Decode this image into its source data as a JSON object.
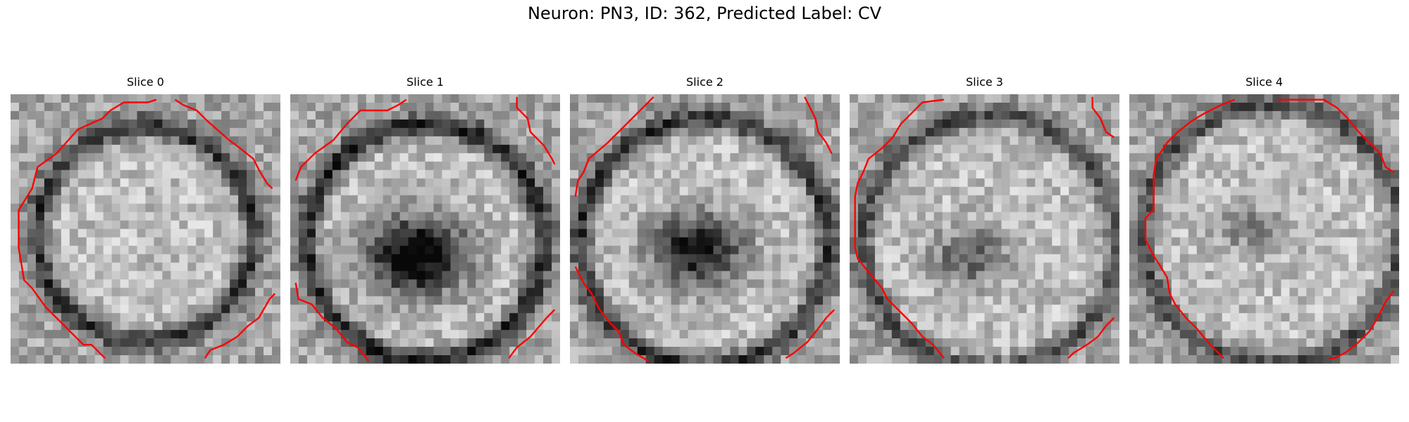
{
  "figure": {
    "title": "Neuron: PN3, ID: 362, Predicted Label: CV",
    "contour_color": "#ff0000"
  },
  "slices": [
    {
      "label": "Slice 0",
      "contours": [
        [
          [
            0.54,
            0.02
          ],
          [
            0.51,
            0.03
          ],
          [
            0.42,
            0.03
          ],
          [
            0.37,
            0.06
          ],
          [
            0.34,
            0.09
          ],
          [
            0.25,
            0.13
          ],
          [
            0.17,
            0.22
          ],
          [
            0.1,
            0.27
          ],
          [
            0.08,
            0.35
          ],
          [
            0.03,
            0.43
          ],
          [
            0.03,
            0.57
          ],
          [
            0.05,
            0.69
          ],
          [
            0.08,
            0.72
          ],
          [
            0.13,
            0.79
          ],
          [
            0.2,
            0.86
          ],
          [
            0.27,
            0.93
          ],
          [
            0.3,
            0.93
          ],
          [
            0.35,
            0.98
          ]
        ],
        [
          [
            0.61,
            0.02
          ],
          [
            0.64,
            0.04
          ],
          [
            0.69,
            0.06
          ],
          [
            0.73,
            0.1
          ],
          [
            0.81,
            0.17
          ],
          [
            0.85,
            0.2
          ],
          [
            0.9,
            0.24
          ],
          [
            0.92,
            0.28
          ],
          [
            0.95,
            0.33
          ],
          [
            0.97,
            0.35
          ]
        ],
        [
          [
            0.98,
            0.74
          ],
          [
            0.96,
            0.76
          ],
          [
            0.92,
            0.83
          ],
          [
            0.88,
            0.86
          ],
          [
            0.84,
            0.9
          ],
          [
            0.79,
            0.93
          ],
          [
            0.74,
            0.95
          ],
          [
            0.72,
            0.98
          ]
        ]
      ]
    },
    {
      "label": "Slice 1",
      "contours": [
        [
          [
            0.43,
            0.02
          ],
          [
            0.4,
            0.04
          ],
          [
            0.36,
            0.06
          ],
          [
            0.26,
            0.06
          ],
          [
            0.21,
            0.11
          ],
          [
            0.16,
            0.17
          ],
          [
            0.09,
            0.22
          ],
          [
            0.04,
            0.27
          ],
          [
            0.02,
            0.32
          ]
        ],
        [
          [
            0.84,
            0.01
          ],
          [
            0.84,
            0.05
          ],
          [
            0.88,
            0.09
          ],
          [
            0.89,
            0.14
          ],
          [
            0.94,
            0.19
          ],
          [
            0.97,
            0.24
          ],
          [
            0.98,
            0.26
          ]
        ],
        [
          [
            0.02,
            0.7
          ],
          [
            0.03,
            0.76
          ],
          [
            0.08,
            0.78
          ],
          [
            0.12,
            0.83
          ],
          [
            0.17,
            0.87
          ],
          [
            0.21,
            0.92
          ],
          [
            0.25,
            0.94
          ],
          [
            0.29,
            0.99
          ]
        ],
        [
          [
            0.98,
            0.8
          ],
          [
            0.95,
            0.83
          ],
          [
            0.89,
            0.9
          ],
          [
            0.84,
            0.94
          ],
          [
            0.81,
            0.98
          ]
        ]
      ]
    },
    {
      "label": "Slice 2",
      "contours": [
        [
          [
            0.31,
            0.01
          ],
          [
            0.25,
            0.07
          ],
          [
            0.19,
            0.13
          ],
          [
            0.14,
            0.18
          ],
          [
            0.07,
            0.24
          ],
          [
            0.05,
            0.29
          ],
          [
            0.03,
            0.32
          ],
          [
            0.02,
            0.38
          ]
        ],
        [
          [
            0.87,
            0.01
          ],
          [
            0.89,
            0.05
          ],
          [
            0.91,
            0.09
          ],
          [
            0.92,
            0.14
          ],
          [
            0.95,
            0.18
          ],
          [
            0.97,
            0.22
          ]
        ],
        [
          [
            0.02,
            0.64
          ],
          [
            0.05,
            0.7
          ],
          [
            0.08,
            0.74
          ],
          [
            0.11,
            0.8
          ],
          [
            0.15,
            0.85
          ],
          [
            0.18,
            0.88
          ],
          [
            0.2,
            0.93
          ],
          [
            0.24,
            0.96
          ],
          [
            0.29,
            0.99
          ]
        ],
        [
          [
            0.98,
            0.8
          ],
          [
            0.95,
            0.83
          ],
          [
            0.92,
            0.87
          ],
          [
            0.88,
            0.92
          ],
          [
            0.83,
            0.96
          ],
          [
            0.8,
            0.98
          ]
        ]
      ]
    },
    {
      "label": "Slice 3",
      "contours": [
        [
          [
            0.35,
            0.02
          ],
          [
            0.27,
            0.03
          ],
          [
            0.23,
            0.07
          ],
          [
            0.19,
            0.11
          ],
          [
            0.16,
            0.16
          ],
          [
            0.12,
            0.2
          ],
          [
            0.07,
            0.24
          ],
          [
            0.05,
            0.29
          ],
          [
            0.03,
            0.33
          ],
          [
            0.02,
            0.38
          ],
          [
            0.02,
            0.57
          ],
          [
            0.03,
            0.61
          ],
          [
            0.07,
            0.66
          ],
          [
            0.12,
            0.72
          ],
          [
            0.14,
            0.76
          ],
          [
            0.18,
            0.8
          ],
          [
            0.23,
            0.85
          ],
          [
            0.27,
            0.9
          ],
          [
            0.31,
            0.93
          ],
          [
            0.35,
            0.98
          ]
        ],
        [
          [
            0.9,
            0.01
          ],
          [
            0.9,
            0.05
          ],
          [
            0.93,
            0.09
          ],
          [
            0.95,
            0.14
          ],
          [
            0.98,
            0.16
          ]
        ],
        [
          [
            0.98,
            0.83
          ],
          [
            0.95,
            0.86
          ],
          [
            0.92,
            0.9
          ],
          [
            0.88,
            0.93
          ],
          [
            0.83,
            0.96
          ],
          [
            0.81,
            0.98
          ]
        ]
      ]
    },
    {
      "label": "Slice 4",
      "contours": [
        [
          [
            0.39,
            0.02
          ],
          [
            0.34,
            0.04
          ],
          [
            0.28,
            0.07
          ],
          [
            0.23,
            0.1
          ],
          [
            0.18,
            0.14
          ],
          [
            0.14,
            0.18
          ],
          [
            0.1,
            0.24
          ],
          [
            0.09,
            0.3
          ],
          [
            0.09,
            0.43
          ],
          [
            0.06,
            0.46
          ],
          [
            0.06,
            0.54
          ],
          [
            0.09,
            0.6
          ],
          [
            0.11,
            0.63
          ],
          [
            0.14,
            0.68
          ],
          [
            0.15,
            0.74
          ],
          [
            0.17,
            0.78
          ],
          [
            0.21,
            0.83
          ],
          [
            0.25,
            0.87
          ],
          [
            0.3,
            0.93
          ],
          [
            0.35,
            0.98
          ]
        ],
        [
          [
            0.55,
            0.02
          ],
          [
            0.72,
            0.02
          ],
          [
            0.77,
            0.05
          ],
          [
            0.81,
            0.09
          ],
          [
            0.85,
            0.14
          ],
          [
            0.89,
            0.18
          ],
          [
            0.93,
            0.22
          ],
          [
            0.95,
            0.27
          ],
          [
            0.98,
            0.29
          ]
        ],
        [
          [
            0.98,
            0.73
          ],
          [
            0.95,
            0.77
          ],
          [
            0.92,
            0.83
          ],
          [
            0.89,
            0.88
          ],
          [
            0.85,
            0.92
          ],
          [
            0.8,
            0.96
          ],
          [
            0.76,
            0.98
          ],
          [
            0.74,
            0.98
          ]
        ]
      ]
    }
  ]
}
